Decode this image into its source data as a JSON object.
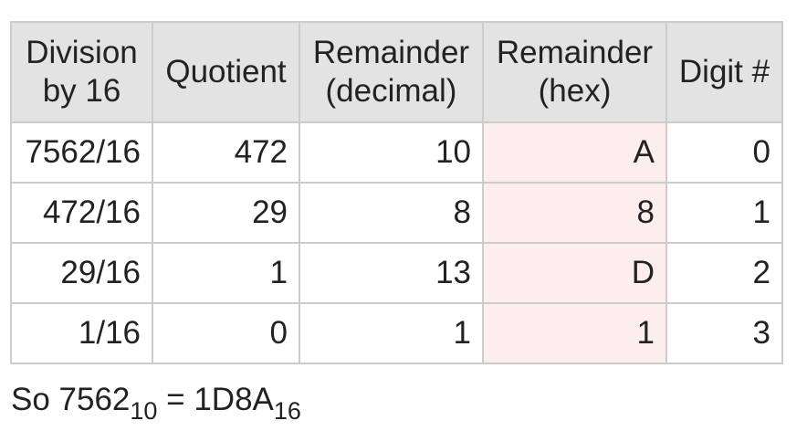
{
  "table": {
    "headers": [
      [
        "Division",
        "by 16"
      ],
      [
        "Quotient"
      ],
      [
        "Remainder",
        "(decimal)"
      ],
      [
        "Remainder",
        "(hex)"
      ],
      [
        "Digit #"
      ]
    ],
    "rows": [
      [
        "7562/16",
        "472",
        "10",
        "A",
        "0"
      ],
      [
        "472/16",
        "29",
        "8",
        "8",
        "1"
      ],
      [
        "29/16",
        "1",
        "13",
        "D",
        "2"
      ],
      [
        "1/16",
        "0",
        "1",
        "1",
        "3"
      ]
    ]
  },
  "conclusion": {
    "prefix": "So 7562",
    "sub1": "10",
    "middle": " = 1D8A",
    "sub2": "16"
  },
  "top_fragment": "10",
  "colors": {
    "header_bg": "#e3e3e3",
    "hex_column_bg": "#fdeeee",
    "border": "#cccccc"
  }
}
